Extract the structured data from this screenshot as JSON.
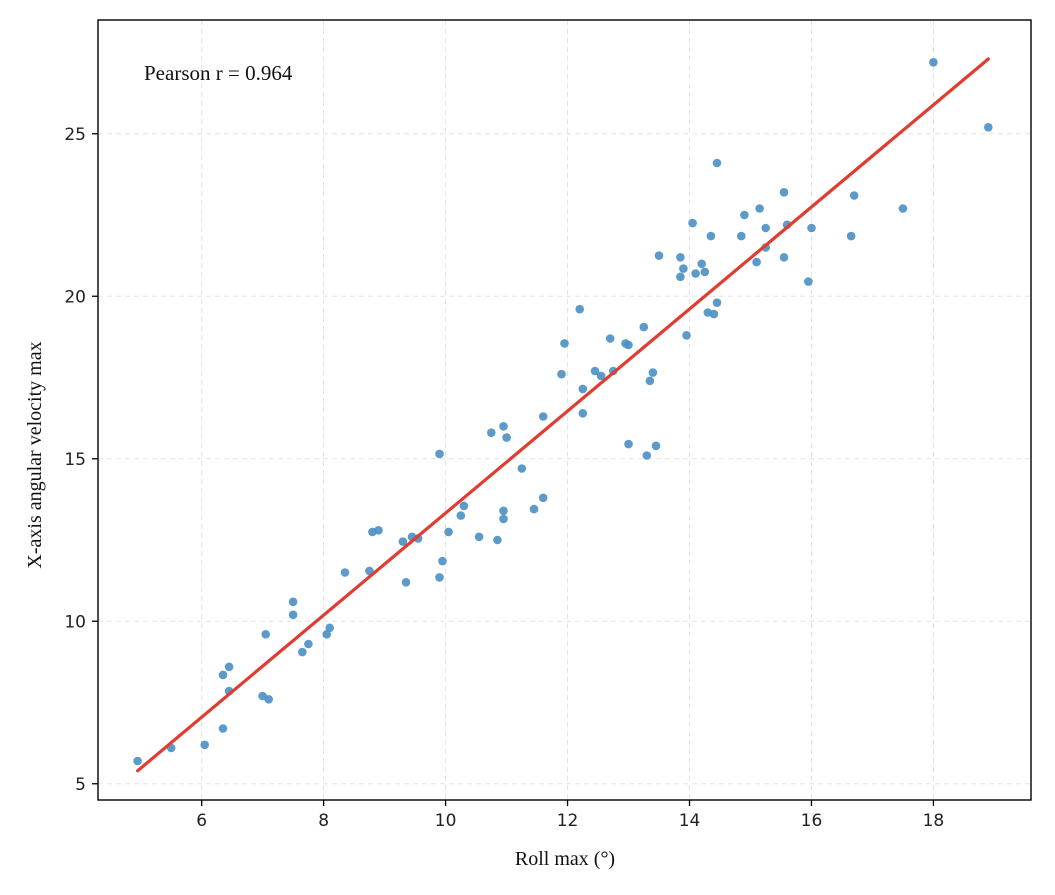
{
  "chart_data": {
    "type": "scatter",
    "xlabel": "Roll max (°)",
    "ylabel": "X-axis angular velocity max",
    "annotation": "Pearson r = 0.964",
    "xlim": [
      4.3,
      19.6
    ],
    "ylim": [
      4.5,
      28.5
    ],
    "xticks": [
      6,
      8,
      10,
      12,
      14,
      16,
      18
    ],
    "yticks": [
      5,
      10,
      15,
      20,
      25
    ],
    "grid": true,
    "colors": {
      "points": "#4a8fc4",
      "fit_line": "#e03c31",
      "axes": "#000000"
    },
    "fit_line": {
      "x": [
        4.95,
        18.9
      ],
      "y": [
        5.4,
        27.3
      ]
    },
    "points": [
      [
        4.95,
        5.7
      ],
      [
        5.5,
        6.1
      ],
      [
        6.05,
        6.2
      ],
      [
        6.35,
        6.7
      ],
      [
        6.35,
        8.35
      ],
      [
        6.45,
        8.6
      ],
      [
        6.45,
        7.85
      ],
      [
        7.0,
        7.7
      ],
      [
        7.1,
        7.6
      ],
      [
        7.05,
        9.6
      ],
      [
        7.5,
        10.6
      ],
      [
        7.5,
        10.2
      ],
      [
        7.65,
        9.05
      ],
      [
        7.75,
        9.3
      ],
      [
        8.05,
        9.6
      ],
      [
        8.1,
        9.8
      ],
      [
        8.35,
        11.5
      ],
      [
        8.75,
        11.55
      ],
      [
        8.8,
        12.75
      ],
      [
        8.9,
        12.8
      ],
      [
        9.3,
        12.45
      ],
      [
        9.35,
        11.2
      ],
      [
        9.45,
        12.6
      ],
      [
        9.55,
        12.55
      ],
      [
        9.9,
        11.35
      ],
      [
        9.9,
        15.15
      ],
      [
        9.95,
        11.85
      ],
      [
        10.05,
        12.75
      ],
      [
        10.25,
        13.25
      ],
      [
        10.3,
        13.55
      ],
      [
        10.55,
        12.6
      ],
      [
        10.75,
        15.8
      ],
      [
        10.85,
        12.5
      ],
      [
        10.95,
        13.4
      ],
      [
        10.95,
        16.0
      ],
      [
        10.95,
        13.15
      ],
      [
        11.0,
        15.65
      ],
      [
        11.25,
        14.7
      ],
      [
        11.45,
        13.45
      ],
      [
        11.6,
        13.8
      ],
      [
        11.6,
        16.3
      ],
      [
        11.9,
        17.6
      ],
      [
        11.95,
        18.55
      ],
      [
        12.2,
        19.6
      ],
      [
        12.25,
        16.4
      ],
      [
        12.25,
        17.15
      ],
      [
        12.45,
        17.7
      ],
      [
        12.55,
        17.55
      ],
      [
        12.7,
        18.7
      ],
      [
        12.75,
        17.7
      ],
      [
        12.95,
        18.55
      ],
      [
        13.0,
        18.5
      ],
      [
        13.0,
        15.45
      ],
      [
        13.25,
        19.05
      ],
      [
        13.3,
        15.1
      ],
      [
        13.35,
        17.4
      ],
      [
        13.4,
        17.65
      ],
      [
        13.45,
        15.4
      ],
      [
        13.5,
        21.25
      ],
      [
        13.85,
        21.2
      ],
      [
        13.85,
        20.6
      ],
      [
        13.9,
        20.85
      ],
      [
        13.95,
        18.8
      ],
      [
        14.05,
        22.25
      ],
      [
        14.1,
        20.7
      ],
      [
        14.2,
        21.0
      ],
      [
        14.25,
        20.75
      ],
      [
        14.3,
        19.5
      ],
      [
        14.35,
        21.85
      ],
      [
        14.4,
        19.45
      ],
      [
        14.45,
        19.8
      ],
      [
        14.45,
        24.1
      ],
      [
        14.85,
        21.85
      ],
      [
        14.9,
        22.5
      ],
      [
        15.1,
        21.05
      ],
      [
        15.15,
        22.7
      ],
      [
        15.25,
        22.1
      ],
      [
        15.25,
        21.5
      ],
      [
        15.55,
        23.2
      ],
      [
        15.55,
        21.2
      ],
      [
        15.6,
        22.2
      ],
      [
        15.95,
        20.45
      ],
      [
        16.0,
        22.1
      ],
      [
        16.65,
        21.85
      ],
      [
        16.7,
        23.1
      ],
      [
        17.5,
        22.7
      ],
      [
        18.0,
        27.2
      ],
      [
        18.9,
        25.2
      ]
    ]
  }
}
